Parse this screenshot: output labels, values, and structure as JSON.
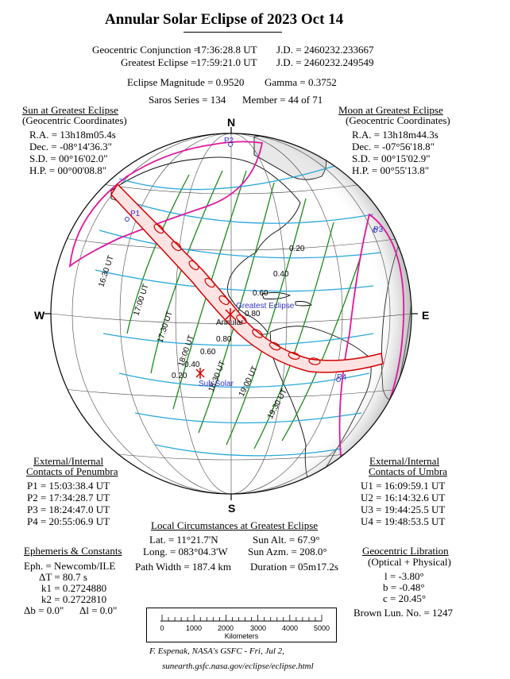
{
  "title": "Annular Solar Eclipse of  2023 Oct 14",
  "header": {
    "conj_label": "Geocentric Conjunction =",
    "conj_time": "17:36:28.8 UT",
    "conj_jd": "J.D. =  2460232.233667",
    "ge_label": "Greatest Eclipse =",
    "ge_time": "17:59:21.0 UT",
    "ge_jd": "J.D. =  2460232.249549",
    "magnitude": "Eclipse Magnitude =  0.9520",
    "gamma": "Gamma =  0.3752",
    "saros": "Saros Series = 134",
    "member": "Member = 44 of 71"
  },
  "sun": {
    "title": "Sun at Greatest Eclipse",
    "subtitle": "(Geocentric Coordinates)",
    "ra": "R.A. =  13h18m05.4s",
    "dec": "Dec. = -08°14'36.3\"",
    "sd": "S.D. =  00°16'02.0\"",
    "hp": "H.P. =  00°00'08.8\""
  },
  "moon": {
    "title": "Moon at Greatest Eclipse",
    "subtitle": "(Geocentric Coordinates)",
    "ra": "R.A. =  13h18m44.3s",
    "dec": "Dec. = -07°56'18.8\"",
    "sd": "S.D. =  00°15'02.9\"",
    "hp": "H.P. =  00°55'13.8\""
  },
  "compass": {
    "n": "N",
    "s": "S",
    "e": "E",
    "w": "W"
  },
  "penumbra": {
    "title": "External/Internal",
    "title2": "Contacts of Penumbra",
    "p1": "P1 =  15:03:38.4 UT",
    "p2": "P2 =  17:34:28.7 UT",
    "p3": "P3 =  18:24:47.0 UT",
    "p4": "P4 =  20:55:06.9 UT"
  },
  "umbra": {
    "title": "External/Internal",
    "title2": "Contacts of Umbra",
    "u1": "U1 =  16:09:59.1 UT",
    "u2": "U2 =  16:14:32.6 UT",
    "u3": "U3 =  19:44:25.5 UT",
    "u4": "U4 =  19:48:53.5 UT"
  },
  "local": {
    "title": "Local Circumstances at Greatest Eclipse",
    "lat": "Lat. =   11°21.7'N",
    "long": "Long. = 083°04.3'W",
    "sun_alt": "Sun Alt. =   67.9°",
    "sun_azm": "Sun Azm. = 208.0°",
    "path_width": "Path Width = 187.4 km",
    "duration": "Duration =  05m17.2s"
  },
  "ephemeris": {
    "title": "Ephemeris & Constants",
    "eph": "Eph. = Newcomb/ILE",
    "dt": "ΔT =    80.7 s",
    "k1": "k1 = 0.2724880",
    "k2": "k2 = 0.2722810",
    "db": "Δb =   0.0\"",
    "dl": "Δl =   0.0\""
  },
  "libration": {
    "title": "Geocentric Libration",
    "subtitle": "(Optical + Physical)",
    "l": "l =  -3.80°",
    "b": "b =  -0.48°",
    "c": "c =  20.45°",
    "brown": "Brown Lun. No. = 1247"
  },
  "scale": {
    "ticks": [
      "0",
      "1000",
      "2000",
      "3000",
      "4000",
      "5000"
    ],
    "unit": "Kilometers"
  },
  "footer": {
    "line1": "F. Espenak, NASA's GSFC - Fri, Jul 2,",
    "line2": "sunearth.gsfc.nasa.gov/eclipse/eclipse.html"
  },
  "map": {
    "time_labels": [
      "16:30 UT",
      "17:00 UT",
      "17:30 UT",
      "18:00 UT",
      "18:30 UT",
      "19:00 UT",
      "19:30 UT"
    ],
    "magnitude_labels": [
      "0.20",
      "0.40",
      "0.60",
      "0.80",
      "0.80",
      "0.60",
      "0.40",
      "0.20"
    ],
    "point_labels": [
      "P1",
      "P2",
      "P3",
      "P4"
    ],
    "greatest_label": "Greatest Eclipse",
    "annular_label": "Annular",
    "subsolar_label": "Sub Solar",
    "colors": {
      "penumbra": "#e0169c",
      "umbra": "#d40000",
      "time": "#1a8a1a",
      "mag": "#2aa8d8",
      "label": "#3434c8"
    }
  }
}
